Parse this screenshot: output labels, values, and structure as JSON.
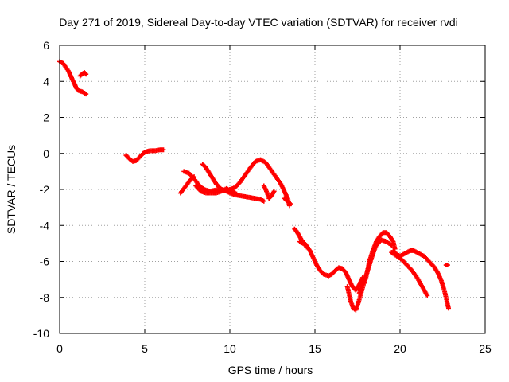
{
  "chart_data": {
    "type": "scatter",
    "title": "Day 271 of 2019, Sidereal Day-to-day VTEC variation (SDTVAR) for receiver rvdi",
    "xlabel": "GPS time / hours",
    "ylabel": "SDTVAR / TECUs",
    "xlim": [
      0,
      25
    ],
    "ylim": [
      -10,
      6
    ],
    "xticks": [
      0,
      5,
      10,
      15,
      20,
      25
    ],
    "yticks": [
      -10,
      -8,
      -6,
      -4,
      -2,
      0,
      2,
      4,
      6
    ],
    "grid": true,
    "marker": "+",
    "series": [
      {
        "name": "SDTVAR",
        "color": "#ff0000",
        "segments": [
          [
            [
              0.0,
              5.1
            ],
            [
              0.2,
              5.0
            ],
            [
              0.35,
              4.8
            ],
            [
              0.5,
              4.6
            ],
            [
              0.6,
              4.4
            ],
            [
              0.7,
              4.2
            ],
            [
              0.8,
              4.0
            ],
            [
              0.9,
              3.8
            ],
            [
              1.0,
              3.6
            ],
            [
              1.1,
              3.5
            ],
            [
              1.25,
              3.45
            ],
            [
              1.4,
              3.4
            ],
            [
              1.55,
              3.3
            ]
          ],
          [
            [
              1.2,
              4.3
            ],
            [
              1.3,
              4.4
            ],
            [
              1.45,
              4.5
            ],
            [
              1.55,
              4.4
            ]
          ],
          [
            [
              3.9,
              -0.1
            ],
            [
              4.1,
              -0.3
            ],
            [
              4.3,
              -0.45
            ],
            [
              4.5,
              -0.4
            ],
            [
              4.7,
              -0.2
            ],
            [
              4.9,
              0.0
            ],
            [
              5.1,
              0.1
            ],
            [
              5.3,
              0.15
            ],
            [
              5.6,
              0.15
            ],
            [
              5.9,
              0.2
            ],
            [
              6.1,
              0.2
            ]
          ],
          [
            [
              7.1,
              -2.2
            ],
            [
              7.3,
              -1.95
            ],
            [
              7.5,
              -1.7
            ],
            [
              7.7,
              -1.45
            ],
            [
              7.9,
              -1.3
            ]
          ],
          [
            [
              7.3,
              -1.0
            ],
            [
              7.6,
              -1.1
            ],
            [
              7.9,
              -1.4
            ],
            [
              8.2,
              -1.8
            ],
            [
              8.5,
              -2.0
            ],
            [
              8.8,
              -2.1
            ],
            [
              9.1,
              -2.05
            ],
            [
              9.4,
              -2.0
            ],
            [
              9.7,
              -2.05
            ],
            [
              10.0,
              -2.2
            ],
            [
              10.3,
              -2.3
            ],
            [
              10.6,
              -2.35
            ],
            [
              10.9,
              -2.4
            ],
            [
              11.2,
              -2.45
            ],
            [
              11.5,
              -2.5
            ],
            [
              11.8,
              -2.55
            ],
            [
              12.0,
              -2.65
            ]
          ],
          [
            [
              8.4,
              -0.6
            ],
            [
              8.6,
              -0.8
            ],
            [
              8.8,
              -1.1
            ],
            [
              9.0,
              -1.4
            ],
            [
              9.2,
              -1.7
            ],
            [
              9.4,
              -1.9
            ],
            [
              9.6,
              -2.05
            ],
            [
              9.8,
              -2.1
            ],
            [
              10.0,
              -2.0
            ]
          ],
          [
            [
              8.0,
              -1.8
            ],
            [
              8.3,
              -2.1
            ],
            [
              8.6,
              -2.2
            ],
            [
              8.9,
              -2.2
            ],
            [
              9.2,
              -2.2
            ],
            [
              9.5,
              -2.1
            ],
            [
              9.8,
              -1.95
            ],
            [
              10.1,
              -2.1
            ],
            [
              10.4,
              -2.25
            ]
          ],
          [
            [
              10.0,
              -2.0
            ],
            [
              10.3,
              -1.9
            ],
            [
              10.6,
              -1.6
            ],
            [
              10.9,
              -1.2
            ],
            [
              11.2,
              -0.8
            ],
            [
              11.5,
              -0.45
            ],
            [
              11.8,
              -0.35
            ],
            [
              12.1,
              -0.5
            ],
            [
              12.4,
              -0.9
            ],
            [
              12.7,
              -1.3
            ],
            [
              13.0,
              -1.7
            ],
            [
              13.2,
              -2.1
            ],
            [
              13.4,
              -2.5
            ],
            [
              13.5,
              -2.9
            ]
          ],
          [
            [
              12.0,
              -1.8
            ],
            [
              12.15,
              -2.1
            ],
            [
              12.3,
              -2.5
            ],
            [
              12.45,
              -2.35
            ],
            [
              12.6,
              -2.1
            ]
          ],
          [
            [
              13.2,
              -2.5
            ],
            [
              13.4,
              -2.65
            ],
            [
              13.55,
              -2.8
            ]
          ],
          [
            [
              13.8,
              -4.2
            ],
            [
              13.9,
              -4.3
            ],
            [
              14.0,
              -4.45
            ],
            [
              14.1,
              -4.6
            ],
            [
              14.2,
              -4.8
            ],
            [
              14.4,
              -5.0
            ],
            [
              14.5,
              -5.2
            ]
          ],
          [
            [
              14.1,
              -4.9
            ],
            [
              14.3,
              -5.0
            ],
            [
              14.5,
              -5.1
            ],
            [
              14.7,
              -5.4
            ],
            [
              14.9,
              -5.8
            ],
            [
              15.1,
              -6.2
            ],
            [
              15.3,
              -6.5
            ],
            [
              15.5,
              -6.7
            ],
            [
              15.8,
              -6.8
            ],
            [
              16.0,
              -6.7
            ],
            [
              16.2,
              -6.5
            ],
            [
              16.4,
              -6.35
            ],
            [
              16.6,
              -6.4
            ],
            [
              16.8,
              -6.6
            ],
            [
              17.0,
              -7.0
            ],
            [
              17.2,
              -7.4
            ],
            [
              17.4,
              -7.6
            ],
            [
              17.6,
              -7.3
            ],
            [
              17.8,
              -6.9
            ]
          ],
          [
            [
              16.9,
              -7.4
            ],
            [
              17.0,
              -7.8
            ],
            [
              17.1,
              -8.2
            ],
            [
              17.25,
              -8.6
            ],
            [
              17.4,
              -8.7
            ],
            [
              17.55,
              -8.3
            ],
            [
              17.7,
              -7.8
            ],
            [
              17.85,
              -7.3
            ],
            [
              18.0,
              -6.9
            ],
            [
              18.2,
              -6.0
            ],
            [
              18.4,
              -5.4
            ],
            [
              18.6,
              -4.9
            ],
            [
              18.8,
              -4.6
            ],
            [
              19.0,
              -4.4
            ],
            [
              19.2,
              -4.4
            ],
            [
              19.4,
              -4.6
            ],
            [
              19.6,
              -4.9
            ],
            [
              19.7,
              -5.3
            ]
          ],
          [
            [
              17.6,
              -7.8
            ],
            [
              17.8,
              -7.2
            ],
            [
              18.0,
              -6.8
            ],
            [
              18.2,
              -6.2
            ],
            [
              18.4,
              -5.6
            ],
            [
              18.6,
              -5.1
            ],
            [
              18.9,
              -4.8
            ],
            [
              19.2,
              -4.9
            ],
            [
              19.5,
              -5.1
            ]
          ],
          [
            [
              19.5,
              -5.5
            ],
            [
              19.8,
              -5.7
            ],
            [
              20.1,
              -5.9
            ],
            [
              20.4,
              -6.2
            ],
            [
              20.7,
              -6.5
            ],
            [
              21.0,
              -6.9
            ],
            [
              21.3,
              -7.4
            ],
            [
              21.6,
              -7.9
            ]
          ],
          [
            [
              19.6,
              -5.4
            ],
            [
              19.8,
              -5.6
            ],
            [
              20.0,
              -5.7
            ],
            [
              20.2,
              -5.6
            ],
            [
              20.4,
              -5.5
            ],
            [
              20.6,
              -5.4
            ],
            [
              20.8,
              -5.4
            ],
            [
              21.0,
              -5.5
            ],
            [
              21.2,
              -5.6
            ],
            [
              21.4,
              -5.7
            ],
            [
              21.6,
              -5.9
            ],
            [
              21.8,
              -6.1
            ],
            [
              22.0,
              -6.3
            ],
            [
              22.2,
              -6.6
            ],
            [
              22.4,
              -7.0
            ],
            [
              22.6,
              -7.6
            ],
            [
              22.75,
              -8.2
            ],
            [
              22.85,
              -8.6
            ]
          ],
          [
            [
              22.7,
              -6.2
            ],
            [
              22.8,
              -6.2
            ]
          ]
        ]
      }
    ]
  }
}
